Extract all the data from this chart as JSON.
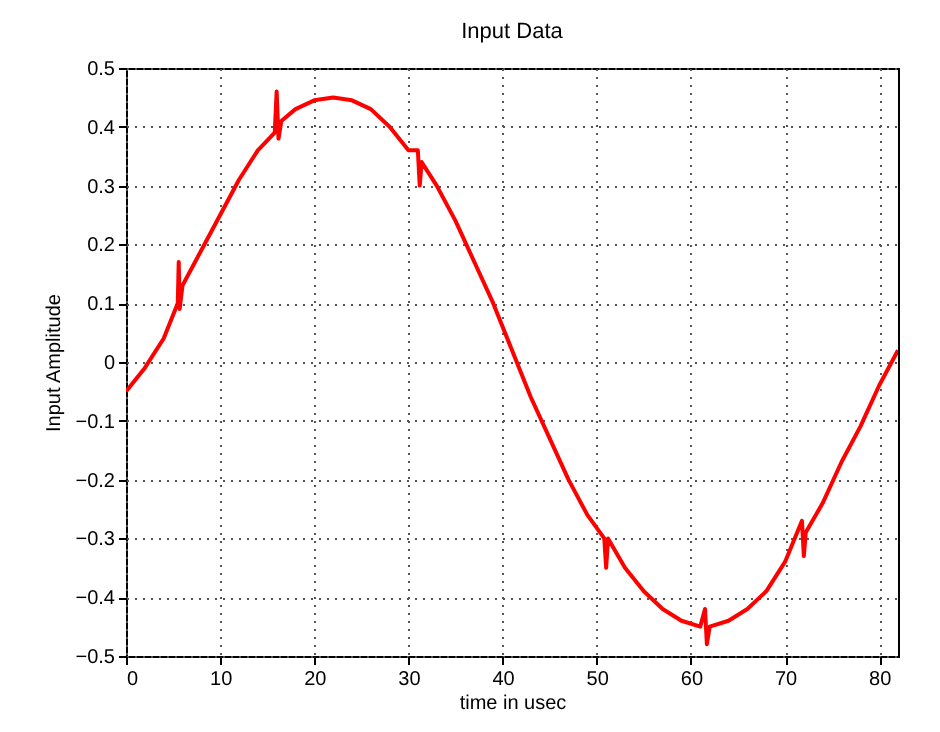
{
  "chart_data": {
    "type": "line",
    "title": "Input Data",
    "xlabel": "time in usec",
    "ylabel": "Input Amplitude",
    "xlim": [
      0,
      82
    ],
    "xticks": [
      0,
      10,
      20,
      30,
      40,
      50,
      60,
      70,
      80
    ],
    "ylim": [
      -0.5,
      0.5
    ],
    "yticks": [
      {
        "value": -0.5,
        "label": "−0.5"
      },
      {
        "value": -0.4,
        "label": "−0.4"
      },
      {
        "value": -0.3,
        "label": "−0.3"
      },
      {
        "value": -0.2,
        "label": "−0.2"
      },
      {
        "value": -0.1,
        "label": "−0.1"
      },
      0,
      0.1,
      0.2,
      0.3,
      0.4,
      0.5
    ],
    "grid": true,
    "line_style": "solid",
    "x": [
      0,
      2,
      4,
      5.5,
      5.6,
      5.7,
      6,
      8,
      10,
      12,
      14,
      15.8,
      16,
      16.2,
      16.5,
      18,
      20,
      22,
      24,
      26,
      28,
      30,
      31,
      31.2,
      31.4,
      33,
      35,
      37,
      39,
      41,
      43,
      45,
      47,
      49,
      50.8,
      51,
      51.2,
      53,
      55,
      57,
      59,
      61,
      61.5,
      61.7,
      62,
      64,
      66,
      68,
      70,
      71.8,
      72,
      72.2,
      74,
      76,
      78,
      80,
      82
    ],
    "series": [
      {
        "color": "#ff0000",
        "values": [
          -0.05,
          -0.01,
          0.04,
          0.1,
          0.17,
          0.09,
          0.13,
          0.19,
          0.25,
          0.31,
          0.36,
          0.39,
          0.46,
          0.38,
          0.41,
          0.43,
          0.445,
          0.45,
          0.445,
          0.43,
          0.4,
          0.36,
          0.36,
          0.3,
          0.34,
          0.3,
          0.24,
          0.17,
          0.1,
          0.02,
          -0.06,
          -0.13,
          -0.2,
          -0.26,
          -0.3,
          -0.35,
          -0.3,
          -0.35,
          -0.39,
          -0.42,
          -0.44,
          -0.45,
          -0.42,
          -0.48,
          -0.45,
          -0.44,
          -0.42,
          -0.39,
          -0.34,
          -0.27,
          -0.33,
          -0.29,
          -0.24,
          -0.17,
          -0.11,
          -0.04,
          0.02
        ]
      }
    ]
  }
}
